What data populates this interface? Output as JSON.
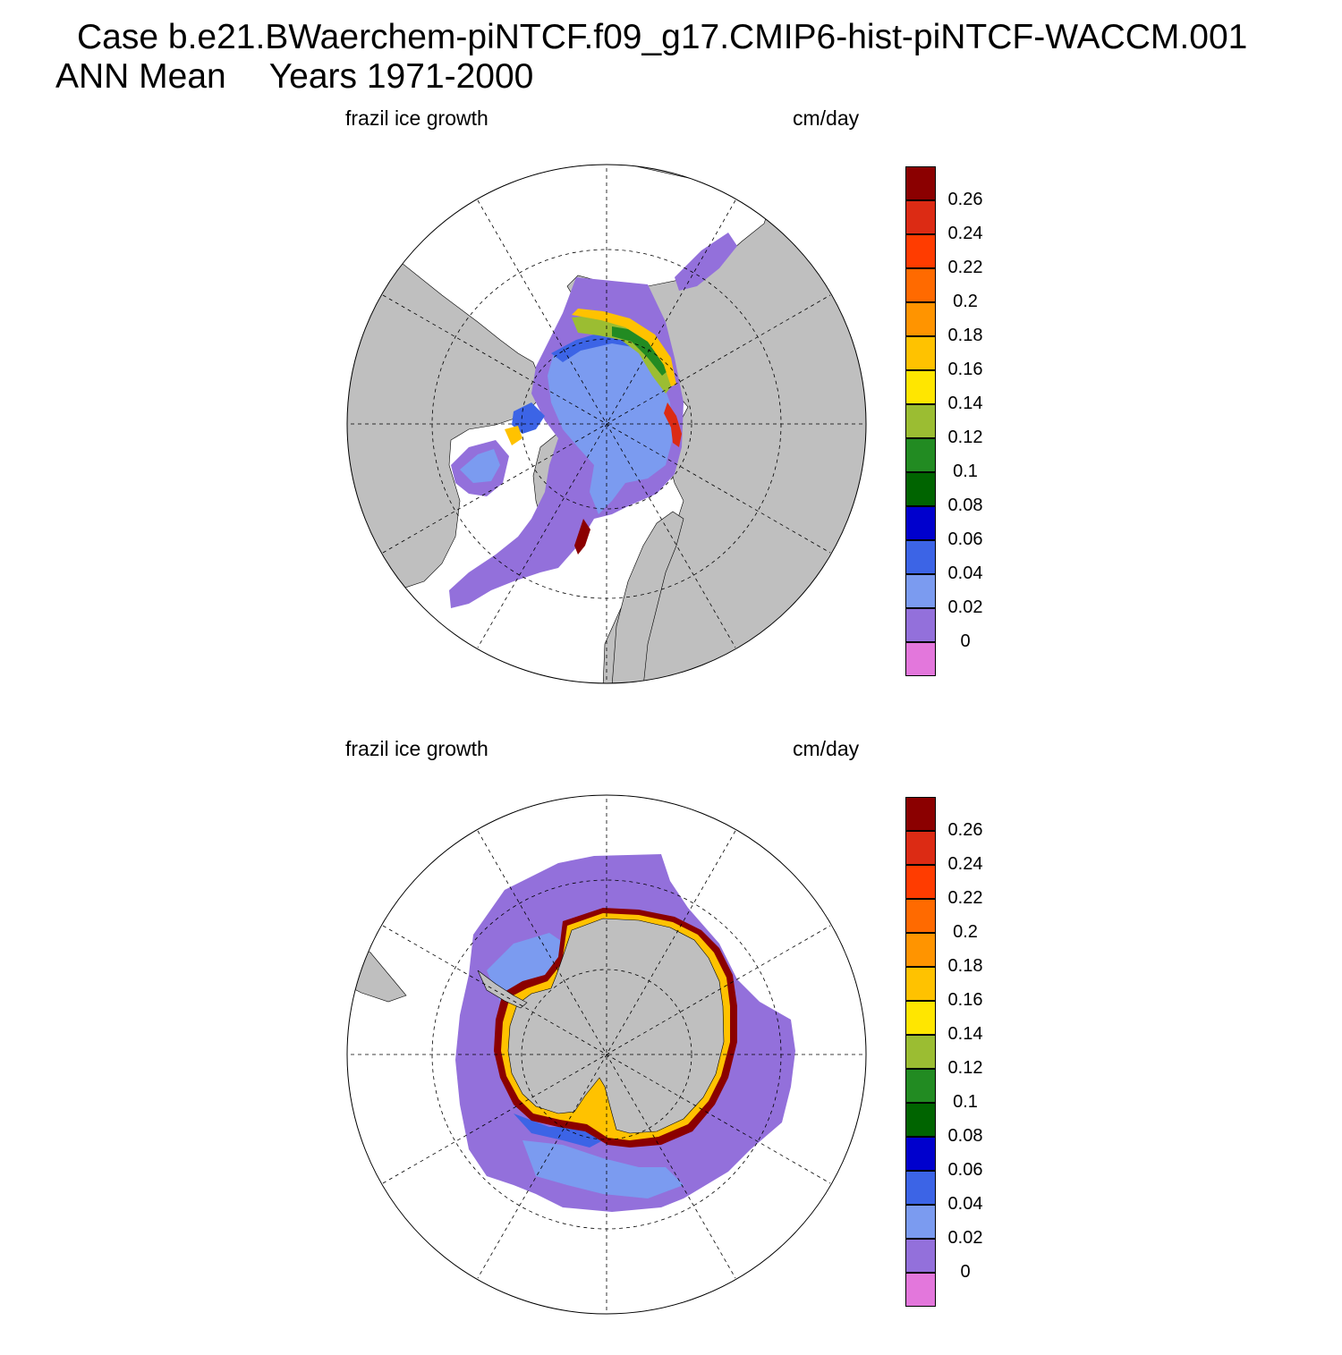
{
  "title": {
    "case": "Case b.e21.BWaerchem-piNTCF.f09_g17.CMIP6-hist-piNTCF-WACCM.001",
    "season": "ANN Mean",
    "years": "Years 1971-2000"
  },
  "panels": [
    {
      "id": "north",
      "left_title": "frazil ice growth",
      "right_title": "cm/day",
      "hemisphere": "Northern Hemisphere polar stereographic",
      "pole": "North Pole"
    },
    {
      "id": "south",
      "left_title": "frazil ice growth",
      "right_title": "cm/day",
      "hemisphere": "Southern Hemisphere polar stereographic",
      "pole": "South Pole"
    }
  ],
  "colorbar": {
    "levels": [
      "0.26",
      "0.24",
      "0.22",
      "0.2",
      "0.18",
      "0.16",
      "0.14",
      "0.12",
      "0.1",
      "0.08",
      "0.06",
      "0.04",
      "0.02",
      "0"
    ],
    "colors": [
      "#8b0000",
      "#dc2b14",
      "#ff3c00",
      "#ff6a00",
      "#ff9400",
      "#ffc200",
      "#ffe600",
      "#9bbd32",
      "#228b22",
      "#006400",
      "#0000cd",
      "#3c64e6",
      "#7b9bf0",
      "#9370db",
      "#e377dc"
    ]
  },
  "map_colors": {
    "land": "#bfbfbf",
    "ocean": "#ffffff",
    "grid": "#000000"
  }
}
